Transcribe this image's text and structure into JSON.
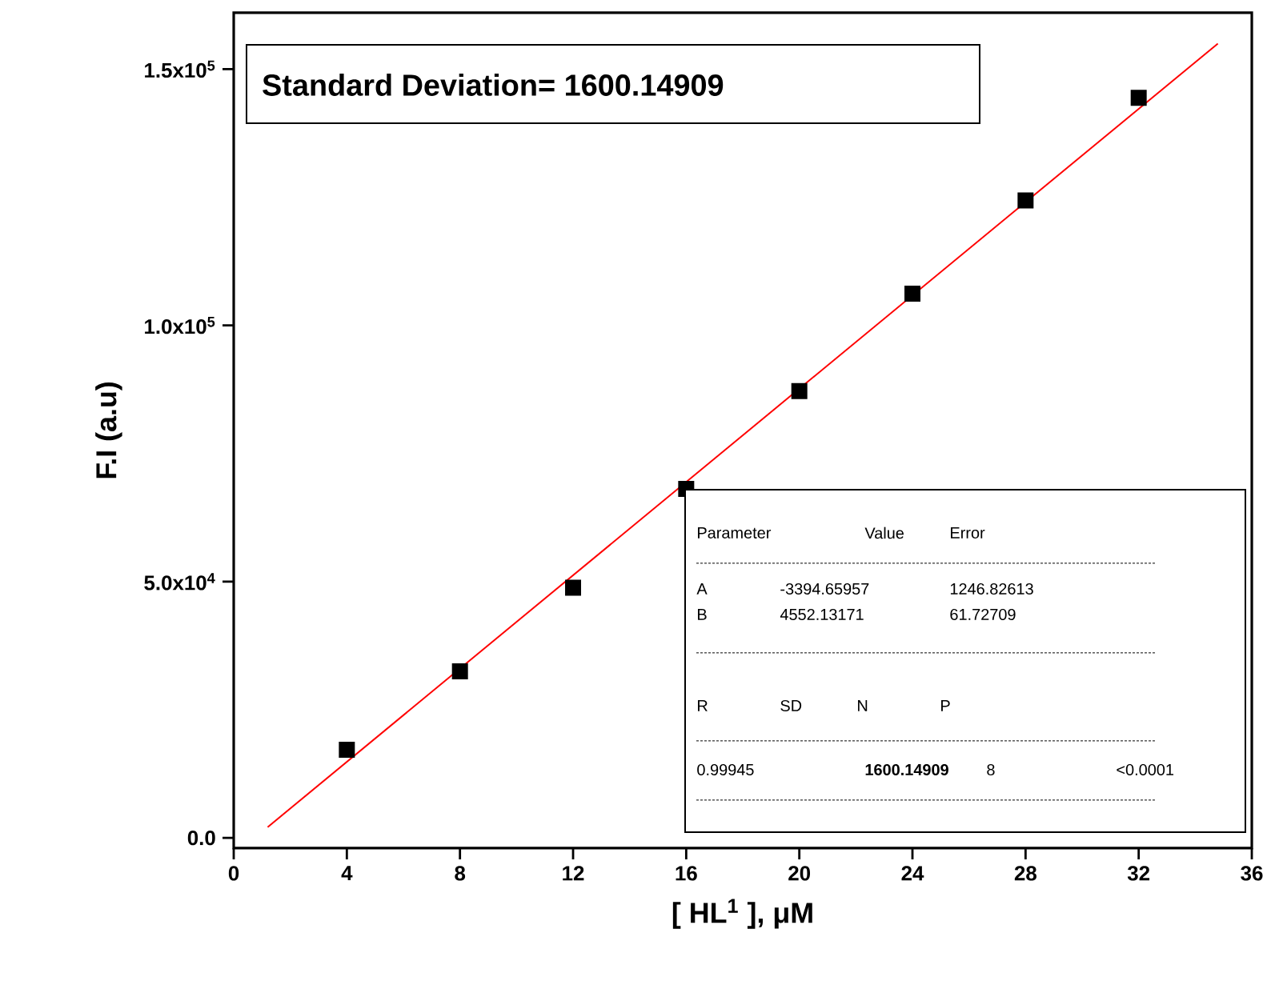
{
  "chart_data": {
    "type": "scatter",
    "xlabel": "[ HL$^{1}$ ], μM",
    "ylabel": "F.I (a.u)",
    "xlim": [
      0,
      36
    ],
    "xticks": [
      0,
      4,
      8,
      12,
      16,
      20,
      24,
      28,
      32,
      36
    ],
    "ylim": [
      -2000,
      161000
    ],
    "yticks": [
      {
        "value": 0,
        "label": "0.0"
      },
      {
        "value": 50000,
        "label": "5.0x10$^{4}$"
      },
      {
        "value": 100000,
        "label": "1.0x10$^{5}$"
      },
      {
        "value": 150000,
        "label": "1.5x10$^{5}$"
      }
    ],
    "grid": false,
    "series": [
      {
        "color": "#000000",
        "marker": "square",
        "x": [
          4,
          8,
          12,
          16,
          20,
          24,
          28,
          32
        ],
        "values": [
          17200,
          32500,
          48800,
          68100,
          87200,
          106200,
          124400,
          144400
        ]
      },
      {
        "type": "line",
        "color": "#ff0000",
        "marker": "none",
        "line_style": "solid",
        "x": [
          1.2,
          34.8
        ],
        "values": [
          2100,
          155000
        ]
      }
    ],
    "annotations": [
      "Standard Deviation= 1600.14909",
      "Parameter",
      "Value",
      "Error",
      "A",
      "-3394.65957",
      "1246.82613",
      "B",
      "4552.13171",
      "61.72709",
      "R",
      "SD",
      "N",
      "P",
      "0.99945",
      "1600.14909",
      "8",
      "<0.0001"
    ]
  }
}
